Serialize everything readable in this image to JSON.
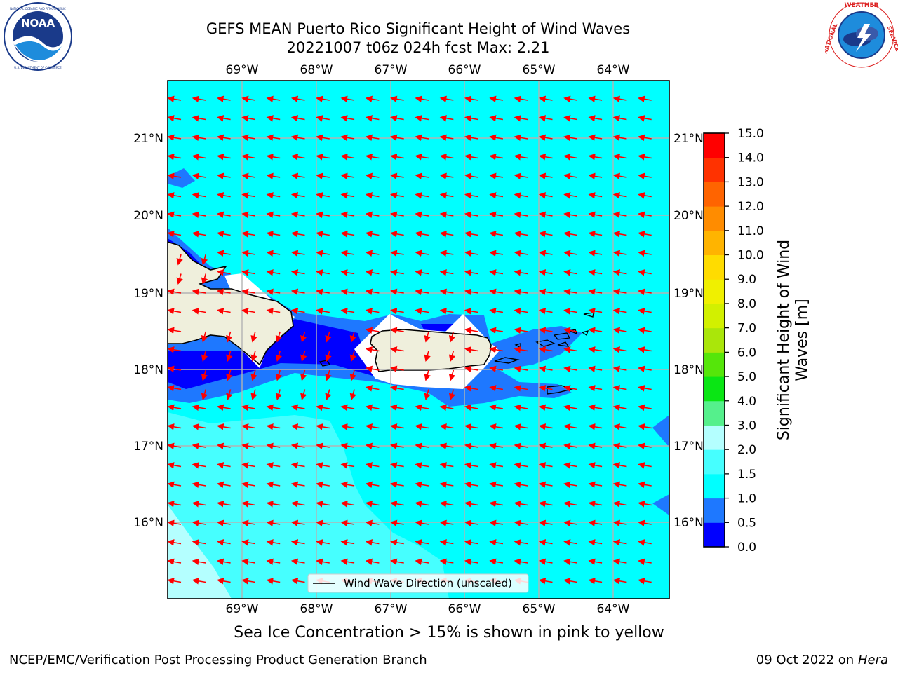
{
  "header": {
    "title_line1": "GEFS MEAN Puerto Rico Significant Height of Wind Waves",
    "title_line2": "20221007 t06z 024h fcst   Max: 2.21"
  },
  "logos": {
    "left": {
      "name": "noaa-logo",
      "text": "NOAA",
      "ring_text": "NATIONAL OCEANIC AND ATMOSPHERIC ADMINISTRATION · U.S. DEPARTMENT OF COMMERCE"
    },
    "right": {
      "name": "nws-logo",
      "ring_text": "NATIONAL WEATHER SERVICE"
    }
  },
  "map": {
    "lon_labels": [
      "69°W",
      "68°W",
      "67°W",
      "66°W",
      "65°W",
      "64°W"
    ],
    "lat_labels": [
      "21°N",
      "20°N",
      "19°N",
      "18°N",
      "17°N",
      "16°N"
    ],
    "legend_label": "Wind Wave Direction (unscaled)",
    "arrow_color": "#ff0000",
    "land_color": "#efefdc"
  },
  "colorbar": {
    "label_line1": "Significant Height of Wind",
    "label_line2": "Waves [m]",
    "ticks": [
      "0.0",
      "0.5",
      "1.0",
      "1.5",
      "2.0",
      "3.0",
      "4.0",
      "5.0",
      "6.0",
      "7.0",
      "8.0",
      "9.0",
      "10.0",
      "11.0",
      "12.0",
      "13.0",
      "14.0",
      "15.0"
    ],
    "colors": [
      "#0000ff",
      "#1e78ff",
      "#00ffff",
      "#46ffff",
      "#b4ffff",
      "#55f08c",
      "#0ae614",
      "#55e60a",
      "#aae60a",
      "#d2f000",
      "#f0f000",
      "#ffdc00",
      "#ffb400",
      "#ff8c00",
      "#ff6400",
      "#ff3200",
      "#ff0000"
    ]
  },
  "notes": {
    "sea_ice": "Sea Ice Concentration > 15% is shown in pink to yellow",
    "branch": "NCEP/EMC/Verification Post Processing Product Generation Branch",
    "date": "09 Oct 2022 on ",
    "host": "Hera"
  }
}
